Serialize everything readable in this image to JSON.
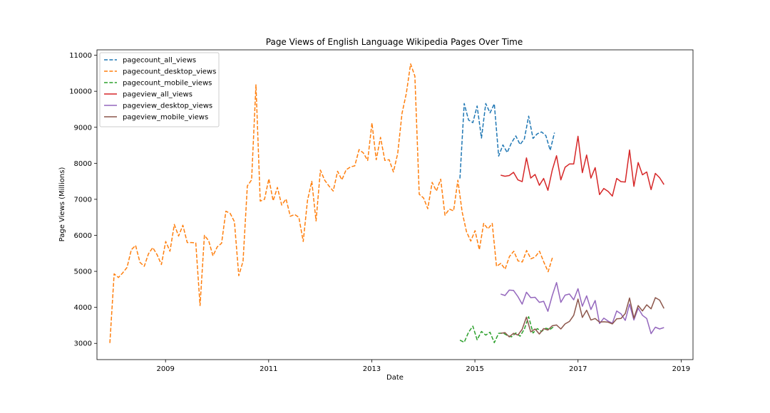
{
  "chart_data": {
    "type": "line",
    "title": "Page Views of English Language Wikipedia Pages Over Time",
    "xlabel": "Date",
    "ylabel": "Page Views (Millions)",
    "xlim": [
      2007.67,
      2019.23
    ],
    "ylim": [
      2550,
      11150
    ],
    "x_ticks": [
      2009,
      2011,
      2013,
      2015,
      2017,
      2019
    ],
    "y_ticks": [
      3000,
      4000,
      5000,
      6000,
      7000,
      8000,
      9000,
      10000,
      11000
    ],
    "grid": false,
    "legend_position": "top-left",
    "series": [
      {
        "name": "pagecount_all_views",
        "color": "#1f77b4",
        "style": "dashed",
        "start": 2014.71,
        "step": 0.08333,
        "values": [
          7580,
          9660,
          9200,
          9130,
          9590,
          8700,
          9660,
          9400,
          9650,
          8200,
          8510,
          8300,
          8570,
          8760,
          8520,
          8680,
          9310,
          8690,
          8820,
          8870,
          8770,
          8360,
          8850
        ]
      },
      {
        "name": "pagecount_desktop_views",
        "color": "#ff7f0e",
        "style": "dashed",
        "start": 2007.92,
        "step": 0.08333,
        "values": [
          3010,
          4930,
          4830,
          4960,
          5110,
          5600,
          5720,
          5250,
          5140,
          5490,
          5660,
          5460,
          5190,
          5830,
          5560,
          6300,
          5980,
          6280,
          5800,
          5800,
          5790,
          4050,
          6000,
          5850,
          5430,
          5680,
          5780,
          6670,
          6610,
          6380,
          4880,
          5280,
          7370,
          7540,
          10180,
          6950,
          7000,
          7570,
          6960,
          7330,
          6840,
          7010,
          6530,
          6580,
          6500,
          5830,
          6970,
          7500,
          6400,
          7810,
          7530,
          7370,
          7230,
          7780,
          7540,
          7820,
          7900,
          7930,
          8380,
          8290,
          8080,
          9120,
          8100,
          8720,
          8080,
          8100,
          7760,
          8270,
          9390,
          9940,
          10760,
          10420,
          7140,
          7040,
          6740,
          7470,
          7230,
          7560,
          6560,
          6730,
          6680,
          7530,
          6650,
          6100,
          5840,
          6130,
          5600,
          6330,
          6180,
          6330,
          5140,
          5220,
          5060,
          5410,
          5560,
          5290,
          5260,
          5580,
          5350,
          5400,
          5560,
          5260,
          4990,
          5380
        ]
      },
      {
        "name": "pagecount_mobile_views",
        "color": "#2ca02c",
        "style": "dashed",
        "start": 2014.71,
        "step": 0.08333,
        "values": [
          3090,
          3030,
          3310,
          3480,
          3100,
          3330,
          3230,
          3310,
          3020,
          3280,
          3290,
          3220,
          3180,
          3290,
          3200,
          3400,
          3740,
          3290,
          3410,
          3330,
          3420,
          3390,
          3480
        ]
      },
      {
        "name": "pageview_all_views",
        "color": "#d62728",
        "style": "solid",
        "start": 2015.5,
        "step": 0.08333,
        "values": [
          7670,
          7640,
          7660,
          7750,
          7540,
          7490,
          8150,
          7590,
          7690,
          7390,
          7580,
          7250,
          7810,
          8210,
          7540,
          7890,
          7980,
          7980,
          8750,
          7740,
          8230,
          7590,
          7880,
          7130,
          7300,
          7220,
          7090,
          7580,
          7490,
          7480,
          8370,
          7360,
          8020,
          7680,
          7760,
          7270,
          7720,
          7600,
          7410
        ]
      },
      {
        "name": "pageview_desktop_views",
        "color": "#9467bd",
        "style": "solid",
        "start": 2015.5,
        "step": 0.08333,
        "values": [
          4370,
          4330,
          4480,
          4470,
          4300,
          4090,
          4420,
          4270,
          4280,
          4140,
          4170,
          3890,
          4330,
          4690,
          4140,
          4340,
          4370,
          4210,
          4520,
          4030,
          4320,
          3940,
          4190,
          3550,
          3700,
          3620,
          3560,
          3900,
          3820,
          3640,
          4090,
          3650,
          3980,
          3780,
          3690,
          3270,
          3450,
          3400,
          3440
        ]
      },
      {
        "name": "pageview_mobile_views",
        "color": "#8c564b",
        "style": "solid",
        "start": 2015.5,
        "step": 0.08333,
        "values": [
          3280,
          3300,
          3180,
          3280,
          3230,
          3390,
          3730,
          3320,
          3400,
          3260,
          3410,
          3370,
          3490,
          3510,
          3400,
          3540,
          3610,
          3780,
          4230,
          3720,
          3920,
          3650,
          3690,
          3590,
          3600,
          3590,
          3540,
          3680,
          3690,
          3830,
          4260,
          3700,
          4050,
          3900,
          4070,
          3960,
          4270,
          4200,
          3970
        ]
      }
    ]
  }
}
